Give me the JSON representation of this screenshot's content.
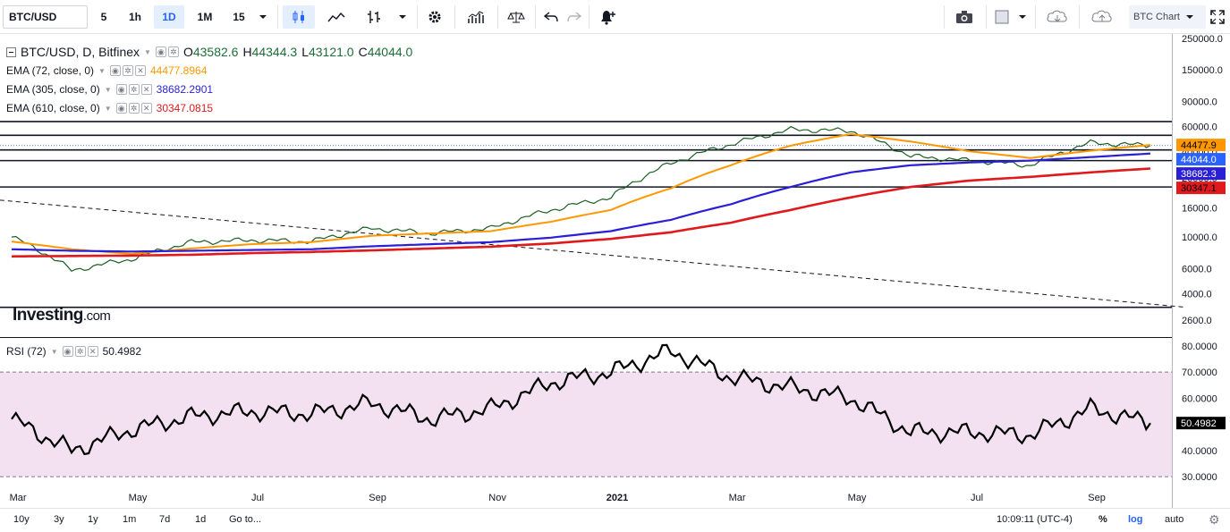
{
  "toolbar": {
    "symbol": "BTC/USD",
    "intervals": [
      "5",
      "1h",
      "1D",
      "1M",
      "15"
    ],
    "active_interval": "1D",
    "btc_chart_label": "BTC Chart"
  },
  "header": {
    "title": "BTC/USD, D, Bitfinex",
    "open_label": "O",
    "open": "43582.6",
    "high_label": "H",
    "high": "44344.3",
    "low_label": "L",
    "low": "43121.0",
    "close_label": "C",
    "close": "44044.0"
  },
  "indicators": [
    {
      "label": "EMA (72, close, 0)",
      "value": "44477.8964",
      "color": "#ff9800"
    },
    {
      "label": "EMA (305, close, 0)",
      "value": "38682.2901",
      "color": "#2a1fd6"
    },
    {
      "label": "EMA (610, close, 0)",
      "value": "30347.0815",
      "color": "#e0191c"
    }
  ],
  "rsi": {
    "label": "RSI (72)",
    "value": "50.4982",
    "upper_band": 70,
    "lower_band": 30
  },
  "logo": {
    "main": "Investing",
    "suffix": ".com"
  },
  "price_axis": {
    "ticks": [
      "250000.0",
      "150000.0",
      "90000.0",
      "60000.0",
      "40000.0",
      "26000.0",
      "16000.0",
      "10000.0",
      "6000.0",
      "4000.0",
      "2600.0"
    ],
    "tick_values": [
      250000,
      150000,
      90000,
      60000,
      40000,
      26000,
      16000,
      10000,
      6000,
      4000,
      2600
    ],
    "scale": "log",
    "badges": [
      {
        "text": "44477.9",
        "value": 44477.9,
        "color": "#ff9800",
        "text_color": "#000000"
      },
      {
        "text": "44044.0",
        "value": 44044.0,
        "color": "#2962ff",
        "text_color": "#ffffff"
      },
      {
        "text": "38682.3",
        "value": 38682.3,
        "color": "#2a1fd6",
        "text_color": "#ffffff"
      },
      {
        "text": "30347.1",
        "value": 30347.1,
        "color": "#e0191c",
        "text_color": "#000000"
      }
    ]
  },
  "rsi_axis": {
    "ticks": [
      "80.0000",
      "70.0000",
      "60.0000",
      "50.0000",
      "40.0000",
      "30.0000"
    ],
    "tick_values": [
      80,
      70,
      60,
      50,
      40,
      30
    ],
    "badge": "50.4982"
  },
  "time_axis": {
    "labels": [
      "Mar",
      "May",
      "Jul",
      "Sep",
      "Nov",
      "2021",
      "Mar",
      "May",
      "Jul",
      "Sep"
    ],
    "bold": [
      false,
      false,
      false,
      false,
      false,
      true,
      false,
      false,
      false,
      false
    ]
  },
  "bottom": {
    "ranges": [
      "10y",
      "3y",
      "1y",
      "1m",
      "7d",
      "1d"
    ],
    "goto": "Go to...",
    "time": "10:09:11 (UTC-4)",
    "percent": "%",
    "log": "log",
    "auto": "auto"
  },
  "chart_data": {
    "type": "line",
    "title": "BTC/USD, D, Bitfinex",
    "scale": "log",
    "ylim": [
      2600,
      250000
    ],
    "x": [
      "2020-02",
      "2020-03",
      "2020-04",
      "2020-05",
      "2020-06",
      "2020-07",
      "2020-08",
      "2020-09",
      "2020-10",
      "2020-11",
      "2020-12",
      "2021-01",
      "2021-02",
      "2021-03",
      "2021-04",
      "2021-05",
      "2021-06",
      "2021-07",
      "2021-08",
      "2021-09"
    ],
    "series": [
      {
        "name": "BTC/USD",
        "color": "#1b5e20",
        "values": [
          10000,
          5800,
          7000,
          9200,
          9500,
          9300,
          11500,
          10600,
          11500,
          15500,
          19000,
          33000,
          45000,
          57000,
          56000,
          37000,
          34500,
          32000,
          46000,
          44044
        ]
      },
      {
        "name": "EMA (72, close, 0)",
        "color": "#ff9800",
        "values": [
          9300,
          8200,
          7600,
          8300,
          8900,
          9200,
          10200,
          10600,
          11000,
          12800,
          15500,
          22000,
          32000,
          44000,
          53000,
          47000,
          40000,
          36000,
          40500,
          44478
        ]
      },
      {
        "name": "EMA (305, close, 0)",
        "color": "#2a1fd6",
        "values": [
          8200,
          8000,
          7900,
          8000,
          8100,
          8200,
          8600,
          8900,
          9200,
          9900,
          11000,
          13200,
          17000,
          22500,
          28500,
          32000,
          33500,
          34500,
          36500,
          38682
        ]
      },
      {
        "name": "EMA (610, close, 0)",
        "color": "#e0191c",
        "values": [
          7300,
          7350,
          7400,
          7500,
          7700,
          7850,
          8050,
          8300,
          8550,
          9000,
          9700,
          10800,
          12600,
          15500,
          19000,
          22500,
          25000,
          26500,
          28500,
          30347
        ]
      }
    ],
    "horizontal_levels": [
      65000,
      52000,
      41000,
      34500,
      22500,
      3200
    ],
    "trendline": {
      "from": [
        "2020-01",
        19500
      ],
      "to": [
        "2021-09",
        3200
      ]
    },
    "rsi": {
      "name": "RSI (72)",
      "values": [
        52,
        40,
        48,
        53,
        55,
        54,
        58,
        52,
        56,
        66,
        70,
        78,
        68,
        64,
        60,
        47,
        47,
        46,
        56,
        50.5
      ],
      "upper": 70,
      "lower": 30,
      "ylim": [
        28,
        82
      ]
    }
  }
}
